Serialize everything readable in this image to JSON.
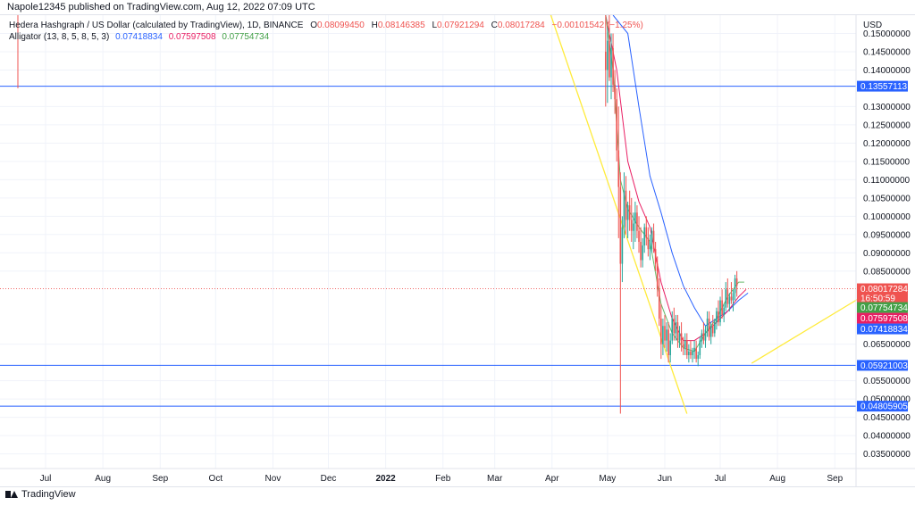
{
  "header": {
    "published_line": "Napole12345 published on TradingView.com, Aug 12, 2022 07:09 UTC"
  },
  "footer": {
    "brand": "TradingView"
  },
  "legend": {
    "symbol": "Hedera Hashgraph / US Dollar (calculated by TradingView), 1D, BINANCE",
    "o_label": "O",
    "o_value": "0.08099450",
    "h_label": "H",
    "h_value": "0.08146385",
    "l_label": "L",
    "l_value": "0.07921294",
    "c_label": "C",
    "c_value": "0.08017284",
    "change": "−0.00101542 (−1.25%)",
    "indicator": "Alligator (13, 8, 5, 8, 5, 3)",
    "jaw_value": "0.07418834",
    "teeth_value": "0.07597508",
    "lips_value": "0.07754734"
  },
  "colors": {
    "up": "#26a69a",
    "down": "#ef5350",
    "jaw": "#2962ff",
    "teeth": "#e91e63",
    "lips": "#66bb6a",
    "hline": "#2962ff",
    "trend": "#ffeb3b",
    "grid": "#f0f3fa"
  },
  "chart_data": {
    "type": "candlestick",
    "currency_label": "USD",
    "y_axis": {
      "range": [
        0.031,
        0.155
      ],
      "ticks": [
        "0.15000000",
        "0.14500000",
        "0.14000000",
        "0.13000000",
        "0.12500000",
        "0.12000000",
        "0.11500000",
        "0.11000000",
        "0.10500000",
        "0.10000000",
        "0.09500000",
        "0.09000000",
        "0.08500000",
        "0.06500000",
        "0.05500000",
        "0.05000000",
        "0.04500000",
        "0.04000000",
        "0.03500000"
      ],
      "tick_values": [
        0.15,
        0.145,
        0.14,
        0.13,
        0.125,
        0.12,
        0.115,
        0.11,
        0.105,
        0.1,
        0.095,
        0.09,
        0.085,
        0.065,
        0.055,
        0.05,
        0.045,
        0.04,
        0.035
      ]
    },
    "x_axis": {
      "ticks": [
        "Jul",
        "Aug",
        "Sep",
        "Oct",
        "Nov",
        "Dec",
        "2022",
        "Feb",
        "Mar",
        "Apr",
        "May",
        "Jun",
        "Jul",
        "Aug",
        "Sep"
      ],
      "tick_days": [
        15,
        46,
        77,
        107,
        138,
        168,
        199,
        230,
        258,
        289,
        319,
        350,
        380,
        411,
        442
      ]
    },
    "horizontal_lines": [
      {
        "value": 0.13557113,
        "label": "0.13557113"
      },
      {
        "value": 0.05921003,
        "label": "0.05921003"
      },
      {
        "value": 0.04805905,
        "label": "0.04805905"
      }
    ],
    "price_labels": [
      {
        "value": 0.08017284,
        "label": "0.08017284",
        "sub": "16:50:59",
        "color": "#ef5350"
      },
      {
        "value": 0.07754734,
        "label": "0.07754734",
        "color": "#43a047"
      },
      {
        "value": 0.07597508,
        "label": "0.07597508",
        "color": "#e91e63"
      },
      {
        "value": 0.07418834,
        "label": "0.07418834",
        "color": "#2962ff"
      }
    ],
    "current_price": 0.08017284,
    "trendlines": [
      {
        "from": [
          287,
          0.157
        ],
        "to": [
          362,
          0.046
        ]
      },
      {
        "from": [
          397,
          0.0598
        ],
        "to": [
          455,
          0.0775
        ]
      }
    ],
    "vertical_marker": {
      "day": 0,
      "range": [
        0.158,
        0.135
      ]
    },
    "candles": [
      {
        "d": 318,
        "o": 0.145,
        "h": 0.155,
        "l": 0.13,
        "c": 0.14
      },
      {
        "d": 319,
        "o": 0.14,
        "h": 0.152,
        "l": 0.131,
        "c": 0.148
      },
      {
        "d": 320,
        "o": 0.148,
        "h": 0.155,
        "l": 0.137,
        "c": 0.138
      },
      {
        "d": 321,
        "o": 0.138,
        "h": 0.15,
        "l": 0.132,
        "c": 0.146
      },
      {
        "d": 322,
        "o": 0.146,
        "h": 0.15,
        "l": 0.134,
        "c": 0.136
      },
      {
        "d": 323,
        "o": 0.136,
        "h": 0.14,
        "l": 0.128,
        "c": 0.132
      },
      {
        "d": 324,
        "o": 0.132,
        "h": 0.135,
        "l": 0.115,
        "c": 0.118
      },
      {
        "d": 325,
        "o": 0.118,
        "h": 0.13,
        "l": 0.094,
        "c": 0.108
      },
      {
        "d": 326,
        "o": 0.108,
        "h": 0.112,
        "l": 0.046,
        "c": 0.087
      },
      {
        "d": 327,
        "o": 0.087,
        "h": 0.1,
        "l": 0.082,
        "c": 0.097
      },
      {
        "d": 328,
        "o": 0.097,
        "h": 0.112,
        "l": 0.094,
        "c": 0.107
      },
      {
        "d": 329,
        "o": 0.107,
        "h": 0.111,
        "l": 0.095,
        "c": 0.099
      },
      {
        "d": 330,
        "o": 0.099,
        "h": 0.104,
        "l": 0.094,
        "c": 0.103
      },
      {
        "d": 331,
        "o": 0.103,
        "h": 0.107,
        "l": 0.096,
        "c": 0.099
      },
      {
        "d": 332,
        "o": 0.099,
        "h": 0.105,
        "l": 0.093,
        "c": 0.096
      },
      {
        "d": 333,
        "o": 0.096,
        "h": 0.101,
        "l": 0.091,
        "c": 0.098
      },
      {
        "d": 334,
        "o": 0.098,
        "h": 0.104,
        "l": 0.093,
        "c": 0.101
      },
      {
        "d": 335,
        "o": 0.101,
        "h": 0.103,
        "l": 0.094,
        "c": 0.096
      },
      {
        "d": 336,
        "o": 0.096,
        "h": 0.1,
        "l": 0.09,
        "c": 0.093
      },
      {
        "d": 337,
        "o": 0.093,
        "h": 0.097,
        "l": 0.086,
        "c": 0.088
      },
      {
        "d": 338,
        "o": 0.088,
        "h": 0.094,
        "l": 0.086,
        "c": 0.092
      },
      {
        "d": 339,
        "o": 0.092,
        "h": 0.098,
        "l": 0.09,
        "c": 0.097
      },
      {
        "d": 340,
        "o": 0.097,
        "h": 0.1,
        "l": 0.092,
        "c": 0.094
      },
      {
        "d": 341,
        "o": 0.094,
        "h": 0.097,
        "l": 0.089,
        "c": 0.091
      },
      {
        "d": 342,
        "o": 0.091,
        "h": 0.095,
        "l": 0.088,
        "c": 0.093
      },
      {
        "d": 343,
        "o": 0.093,
        "h": 0.097,
        "l": 0.09,
        "c": 0.096
      },
      {
        "d": 344,
        "o": 0.096,
        "h": 0.098,
        "l": 0.09,
        "c": 0.091
      },
      {
        "d": 345,
        "o": 0.091,
        "h": 0.093,
        "l": 0.085,
        "c": 0.087
      },
      {
        "d": 346,
        "o": 0.087,
        "h": 0.089,
        "l": 0.078,
        "c": 0.08
      },
      {
        "d": 347,
        "o": 0.08,
        "h": 0.083,
        "l": 0.07,
        "c": 0.072
      },
      {
        "d": 348,
        "o": 0.072,
        "h": 0.076,
        "l": 0.061,
        "c": 0.065
      },
      {
        "d": 349,
        "o": 0.065,
        "h": 0.072,
        "l": 0.062,
        "c": 0.07
      },
      {
        "d": 350,
        "o": 0.07,
        "h": 0.073,
        "l": 0.064,
        "c": 0.066
      },
      {
        "d": 351,
        "o": 0.066,
        "h": 0.071,
        "l": 0.063,
        "c": 0.069
      },
      {
        "d": 352,
        "o": 0.069,
        "h": 0.071,
        "l": 0.06,
        "c": 0.062
      },
      {
        "d": 353,
        "o": 0.062,
        "h": 0.068,
        "l": 0.06,
        "c": 0.066
      },
      {
        "d": 354,
        "o": 0.066,
        "h": 0.074,
        "l": 0.065,
        "c": 0.072
      },
      {
        "d": 355,
        "o": 0.072,
        "h": 0.075,
        "l": 0.066,
        "c": 0.068
      },
      {
        "d": 356,
        "o": 0.068,
        "h": 0.073,
        "l": 0.066,
        "c": 0.071
      },
      {
        "d": 357,
        "o": 0.071,
        "h": 0.073,
        "l": 0.064,
        "c": 0.066
      },
      {
        "d": 358,
        "o": 0.066,
        "h": 0.07,
        "l": 0.064,
        "c": 0.068
      },
      {
        "d": 359,
        "o": 0.068,
        "h": 0.071,
        "l": 0.063,
        "c": 0.065
      },
      {
        "d": 360,
        "o": 0.065,
        "h": 0.067,
        "l": 0.062,
        "c": 0.064
      },
      {
        "d": 361,
        "o": 0.064,
        "h": 0.068,
        "l": 0.062,
        "c": 0.066
      },
      {
        "d": 362,
        "o": 0.066,
        "h": 0.068,
        "l": 0.061,
        "c": 0.062
      },
      {
        "d": 363,
        "o": 0.062,
        "h": 0.065,
        "l": 0.06,
        "c": 0.063
      },
      {
        "d": 364,
        "o": 0.063,
        "h": 0.066,
        "l": 0.061,
        "c": 0.062
      },
      {
        "d": 365,
        "o": 0.062,
        "h": 0.064,
        "l": 0.06,
        "c": 0.063
      },
      {
        "d": 366,
        "o": 0.063,
        "h": 0.066,
        "l": 0.061,
        "c": 0.064
      },
      {
        "d": 367,
        "o": 0.064,
        "h": 0.066,
        "l": 0.06,
        "c": 0.061
      },
      {
        "d": 368,
        "o": 0.061,
        "h": 0.063,
        "l": 0.059,
        "c": 0.062
      },
      {
        "d": 369,
        "o": 0.062,
        "h": 0.067,
        "l": 0.061,
        "c": 0.066
      },
      {
        "d": 370,
        "o": 0.066,
        "h": 0.069,
        "l": 0.064,
        "c": 0.068
      },
      {
        "d": 371,
        "o": 0.068,
        "h": 0.071,
        "l": 0.065,
        "c": 0.066
      },
      {
        "d": 372,
        "o": 0.066,
        "h": 0.07,
        "l": 0.064,
        "c": 0.069
      },
      {
        "d": 373,
        "o": 0.069,
        "h": 0.074,
        "l": 0.067,
        "c": 0.072
      },
      {
        "d": 374,
        "o": 0.072,
        "h": 0.074,
        "l": 0.066,
        "c": 0.067
      },
      {
        "d": 375,
        "o": 0.067,
        "h": 0.071,
        "l": 0.065,
        "c": 0.07
      },
      {
        "d": 376,
        "o": 0.07,
        "h": 0.073,
        "l": 0.067,
        "c": 0.068
      },
      {
        "d": 377,
        "o": 0.068,
        "h": 0.072,
        "l": 0.067,
        "c": 0.071
      },
      {
        "d": 378,
        "o": 0.071,
        "h": 0.075,
        "l": 0.069,
        "c": 0.074
      },
      {
        "d": 379,
        "o": 0.074,
        "h": 0.077,
        "l": 0.07,
        "c": 0.071
      },
      {
        "d": 380,
        "o": 0.071,
        "h": 0.078,
        "l": 0.07,
        "c": 0.077
      },
      {
        "d": 381,
        "o": 0.077,
        "h": 0.08,
        "l": 0.072,
        "c": 0.073
      },
      {
        "d": 382,
        "o": 0.073,
        "h": 0.076,
        "l": 0.071,
        "c": 0.075
      },
      {
        "d": 383,
        "o": 0.075,
        "h": 0.082,
        "l": 0.074,
        "c": 0.08
      },
      {
        "d": 384,
        "o": 0.08,
        "h": 0.083,
        "l": 0.075,
        "c": 0.076
      },
      {
        "d": 385,
        "o": 0.076,
        "h": 0.079,
        "l": 0.074,
        "c": 0.078
      },
      {
        "d": 386,
        "o": 0.078,
        "h": 0.082,
        "l": 0.076,
        "c": 0.077
      },
      {
        "d": 387,
        "o": 0.077,
        "h": 0.08,
        "l": 0.074,
        "c": 0.079
      },
      {
        "d": 388,
        "o": 0.079,
        "h": 0.084,
        "l": 0.077,
        "c": 0.083
      },
      {
        "d": 389,
        "o": 0.083,
        "h": 0.085,
        "l": 0.078,
        "c": 0.081
      }
    ],
    "alligator": {
      "jaw": [
        [
          322,
          0.158
        ],
        [
          330,
          0.15
        ],
        [
          336,
          0.13
        ],
        [
          342,
          0.111
        ],
        [
          348,
          0.101
        ],
        [
          354,
          0.09
        ],
        [
          360,
          0.081
        ],
        [
          366,
          0.075
        ],
        [
          372,
          0.07
        ],
        [
          378,
          0.072
        ],
        [
          384,
          0.074
        ],
        [
          390,
          0.077
        ],
        [
          395,
          0.079
        ]
      ],
      "teeth": [
        [
          318,
          0.157
        ],
        [
          324,
          0.14
        ],
        [
          330,
          0.115
        ],
        [
          336,
          0.104
        ],
        [
          342,
          0.097
        ],
        [
          348,
          0.082
        ],
        [
          354,
          0.072
        ],
        [
          360,
          0.066
        ],
        [
          366,
          0.066
        ],
        [
          372,
          0.068
        ],
        [
          378,
          0.071
        ],
        [
          384,
          0.074
        ],
        [
          390,
          0.078
        ],
        [
          394,
          0.08
        ]
      ],
      "lips": [
        [
          318,
          0.155
        ],
        [
          322,
          0.14
        ],
        [
          326,
          0.11
        ],
        [
          330,
          0.102
        ],
        [
          336,
          0.097
        ],
        [
          342,
          0.093
        ],
        [
          348,
          0.076
        ],
        [
          354,
          0.068
        ],
        [
          360,
          0.064
        ],
        [
          366,
          0.063
        ],
        [
          372,
          0.068
        ],
        [
          378,
          0.072
        ],
        [
          384,
          0.078
        ],
        [
          390,
          0.082
        ],
        [
          393,
          0.082
        ]
      ]
    }
  }
}
